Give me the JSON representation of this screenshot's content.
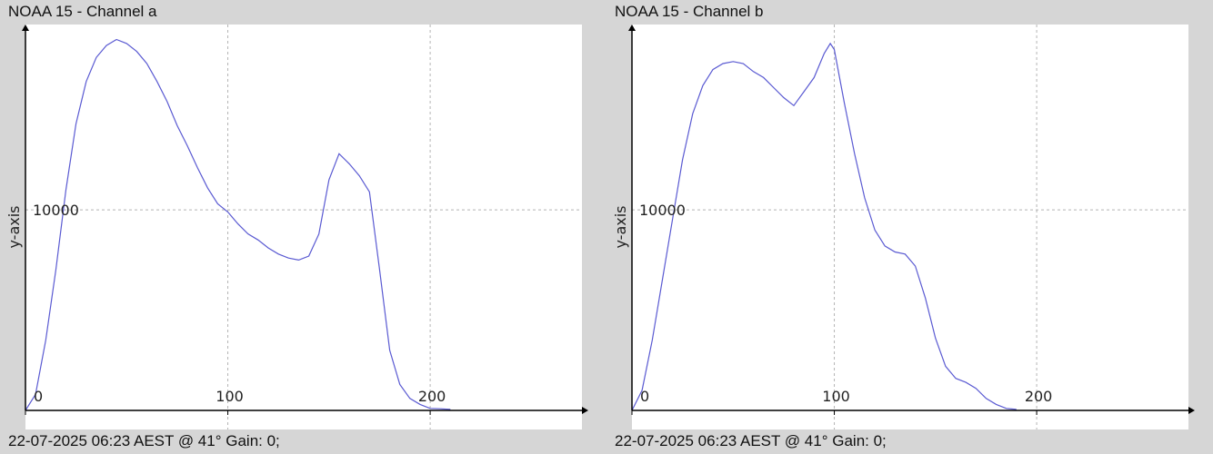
{
  "colors": {
    "background": "#d6d6d6",
    "plot_background": "#ffffff",
    "line": "#5a5ad2",
    "grid": "#b4b4b4",
    "axis": "#000000"
  },
  "chart_data": [
    {
      "type": "line",
      "title": "NOAA 15 - Channel a",
      "footer": "22-07-2025 06:23 AEST @ 41° Gain: 0;",
      "ylabel": "y-axis",
      "xlabel": "",
      "xlim": [
        0,
        275
      ],
      "ylim": [
        0,
        19200
      ],
      "x_ticks": [
        0,
        100,
        200
      ],
      "y_ticks": [
        10000
      ],
      "grid": true,
      "series": [
        {
          "x": [
            0,
            5,
            10,
            15,
            20,
            25,
            30,
            35,
            40,
            45,
            50,
            55,
            60,
            65,
            70,
            75,
            80,
            85,
            90,
            95,
            100,
            105,
            110,
            115,
            120,
            125,
            130,
            135,
            140,
            145,
            150,
            155,
            160,
            165,
            170,
            175,
            180,
            185,
            190,
            195,
            200,
            205,
            210
          ],
          "y": [
            0,
            800,
            3500,
            7000,
            11000,
            14300,
            16400,
            17600,
            18200,
            18500,
            18300,
            17900,
            17300,
            16400,
            15400,
            14200,
            13200,
            12100,
            11100,
            10300,
            9900,
            9300,
            8800,
            8500,
            8100,
            7800,
            7600,
            7500,
            7700,
            8800,
            11500,
            12800,
            12300,
            11700,
            10900,
            7000,
            3000,
            1300,
            600,
            300,
            100,
            80,
            50
          ]
        }
      ]
    },
    {
      "type": "line",
      "title": "NOAA 15 - Channel b",
      "footer": "22-07-2025 06:23 AEST @ 41° Gain: 0;",
      "ylabel": "y-axis",
      "xlabel": "",
      "xlim": [
        0,
        275
      ],
      "ylim": [
        0,
        19200
      ],
      "x_ticks": [
        0,
        100,
        200
      ],
      "y_ticks": [
        10000
      ],
      "grid": true,
      "series": [
        {
          "x": [
            0,
            5,
            10,
            15,
            20,
            25,
            30,
            35,
            40,
            45,
            50,
            55,
            60,
            65,
            70,
            75,
            80,
            85,
            90,
            95,
            98,
            100,
            105,
            110,
            115,
            120,
            125,
            130,
            135,
            140,
            145,
            150,
            155,
            160,
            165,
            170,
            175,
            180,
            185,
            190
          ],
          "y": [
            0,
            1000,
            3500,
            6500,
            9500,
            12500,
            14800,
            16200,
            17000,
            17300,
            17400,
            17300,
            16900,
            16600,
            16100,
            15600,
            15200,
            15900,
            16600,
            17800,
            18300,
            18000,
            15300,
            12800,
            10600,
            9000,
            8200,
            7900,
            7800,
            7200,
            5600,
            3600,
            2200,
            1600,
            1400,
            1100,
            600,
            300,
            100,
            50
          ]
        }
      ]
    }
  ]
}
